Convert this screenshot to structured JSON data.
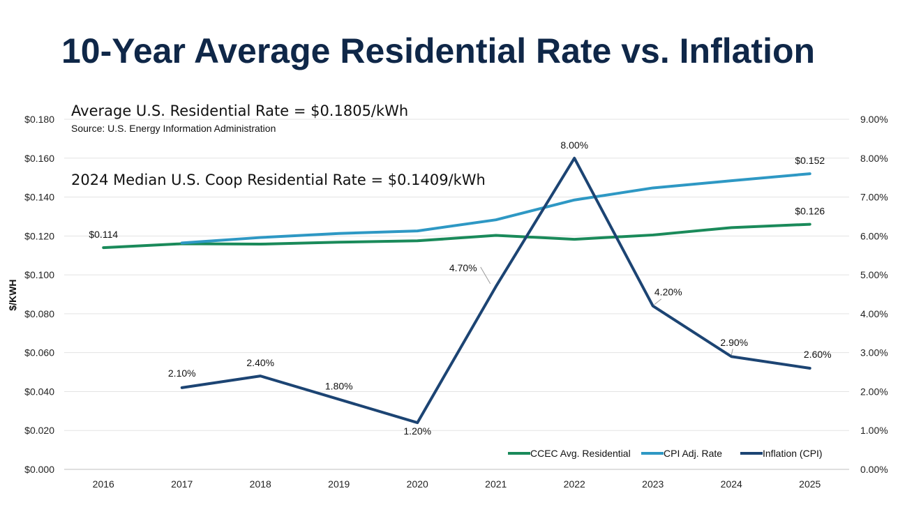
{
  "page": {
    "title": "10-Year Average Residential Rate vs. Inflation"
  },
  "notes": {
    "avg_us_rate": "Average U.S. Residential Rate = $0.1805/kWh",
    "source": "Source: U.S. Energy Information Administration",
    "median_coop_rate": "2024 Median U.S. Coop Residential Rate = $0.1409/kWh"
  },
  "chart_data": {
    "type": "line",
    "x": [
      "2016",
      "2017",
      "2018",
      "2019",
      "2020",
      "2021",
      "2022",
      "2023",
      "2024",
      "2025"
    ],
    "y_left": {
      "label": "$/KWH",
      "range": [
        0,
        0.18
      ],
      "ticks": [
        "$0.000",
        "$0.020",
        "$0.040",
        "$0.060",
        "$0.080",
        "$0.100",
        "$0.120",
        "$0.140",
        "$0.160",
        "$0.180"
      ]
    },
    "y_right": {
      "range": [
        0,
        9
      ],
      "ticks": [
        "0.00%",
        "1.00%",
        "2.00%",
        "3.00%",
        "4.00%",
        "5.00%",
        "6.00%",
        "7.00%",
        "8.00%",
        "9.00%"
      ]
    },
    "grid": "horizontal",
    "legend_position": "bottom-right",
    "series": [
      {
        "name": "CCEC Avg. Residential",
        "axis": "left",
        "color": "#1a8a5a",
        "values": [
          0.114,
          0.116,
          0.1158,
          0.1168,
          0.1175,
          0.1203,
          0.1183,
          0.1205,
          0.1243,
          0.126
        ],
        "labels": [
          "$0.114",
          null,
          null,
          null,
          null,
          null,
          null,
          null,
          null,
          "$0.126"
        ]
      },
      {
        "name": "CPI Adj. Rate",
        "axis": "left",
        "color": "#2e98c4",
        "values": [
          null,
          0.1164,
          0.1192,
          0.1213,
          0.1226,
          0.1283,
          0.1385,
          0.1447,
          0.1484,
          0.152
        ],
        "labels": [
          null,
          null,
          null,
          null,
          null,
          null,
          null,
          null,
          null,
          "$0.152"
        ]
      },
      {
        "name": "Inflation (CPI)",
        "axis": "right",
        "color": "#1c4473",
        "values": [
          null,
          2.1,
          2.4,
          1.8,
          1.2,
          4.7,
          8.0,
          4.2,
          2.9,
          2.6
        ],
        "labels": [
          null,
          "2.10%",
          "2.40%",
          "1.80%",
          "1.20%",
          "4.70%",
          "8.00%",
          "4.20%",
          "2.90%",
          "2.60%"
        ]
      }
    ]
  }
}
